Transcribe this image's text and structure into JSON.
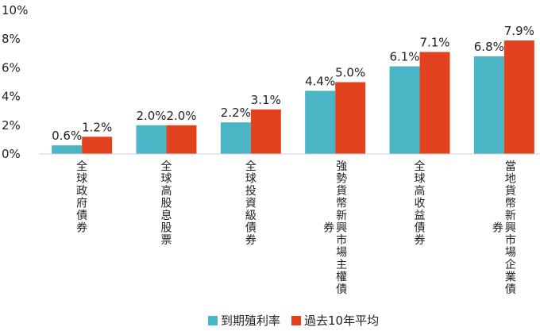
{
  "chart_data": {
    "type": "bar",
    "categories": [
      "全球政府債券",
      "全球高股息股票",
      "全球投資級債券",
      "強勢貨幣新興市場主權債券",
      "全球高收益債券",
      "當地貨幣新興市場企業債券"
    ],
    "series": [
      {
        "name": "到期殖利率",
        "values": [
          0.6,
          2.0,
          2.2,
          4.4,
          6.1,
          6.8
        ],
        "color": "#4BB5C6"
      },
      {
        "name": "過去10年平均",
        "values": [
          1.2,
          2.0,
          3.1,
          5.0,
          7.1,
          7.9
        ],
        "color": "#E2421E"
      }
    ],
    "value_labels": [
      [
        "0.6%",
        "2.0%",
        "2.2%",
        "4.4%",
        "6.1%",
        "6.8%"
      ],
      [
        "1.2%",
        "2.0%",
        "3.1%",
        "5.0%",
        "7.1%",
        "7.9%"
      ]
    ],
    "ylim": [
      0,
      10
    ],
    "yticks": [
      "0%",
      "2%",
      "4%",
      "6%",
      "8%",
      "10%"
    ],
    "grid": false,
    "legend_position": "bottom"
  }
}
